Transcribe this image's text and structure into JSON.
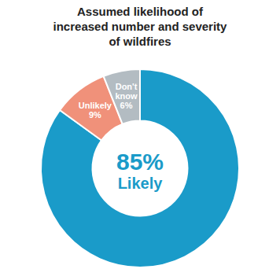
{
  "chart_data": {
    "type": "donut",
    "title": "Assumed likelihood of\nincreased number and severity\nof wildfires",
    "categories": [
      "Likely",
      "Unlikely",
      "Don't know"
    ],
    "values": [
      85,
      9,
      6
    ],
    "value_labels": [
      "85%",
      "9%",
      "6%"
    ],
    "colors": [
      "#1a9bc9",
      "#f0917a",
      "#b3bcc2"
    ],
    "data_labels": true
  }
}
